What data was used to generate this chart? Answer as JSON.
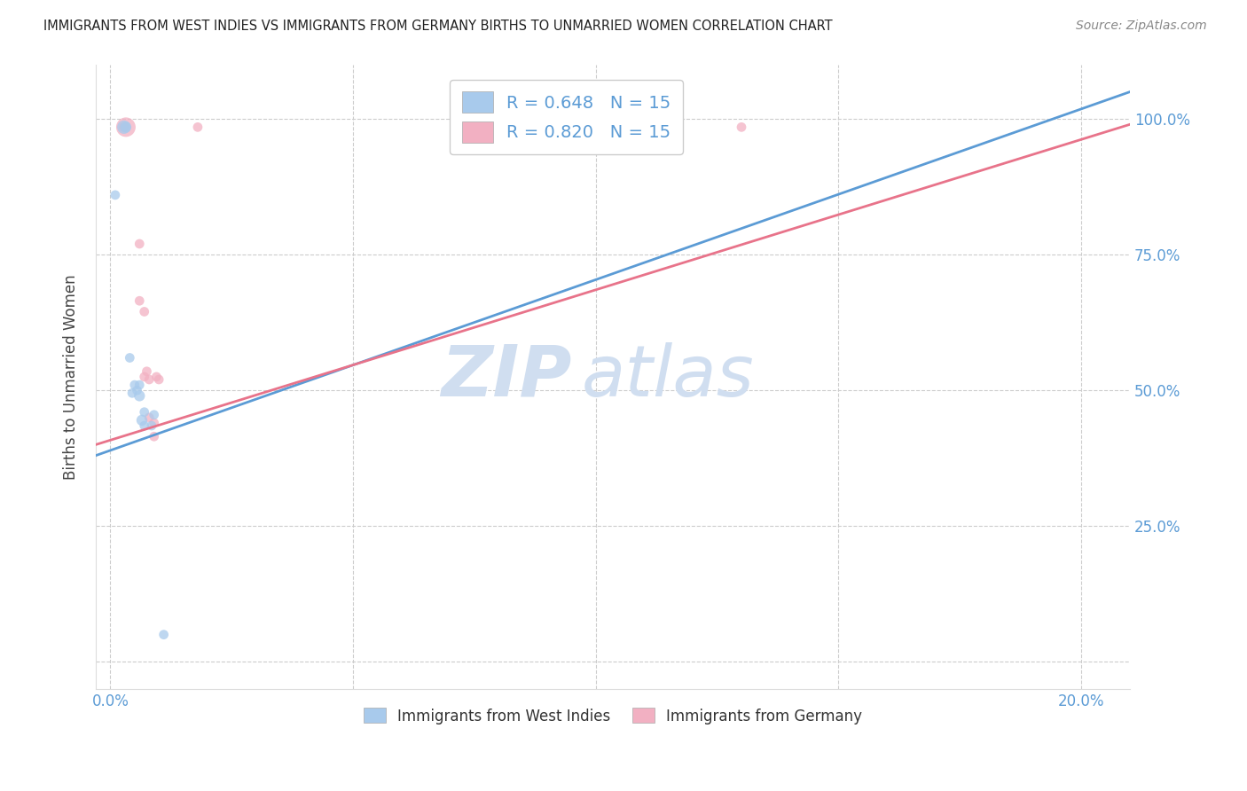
{
  "title": "IMMIGRANTS FROM WEST INDIES VS IMMIGRANTS FROM GERMANY BIRTHS TO UNMARRIED WOMEN CORRELATION CHART",
  "source": "Source: ZipAtlas.com",
  "ylabel_label": "Births to Unmarried Women",
  "xlim": [
    -0.003,
    0.21
  ],
  "ylim": [
    -0.05,
    1.1
  ],
  "R_blue": 0.648,
  "N_blue": 15,
  "R_pink": 0.82,
  "N_pink": 15,
  "blue_color": "#A8CAEC",
  "pink_color": "#F2B0C2",
  "blue_line_color": "#5B9BD5",
  "pink_line_color": "#E8738A",
  "watermark_zip": "ZIP",
  "watermark_atlas": "atlas",
  "watermark_color": "#D0DEF0",
  "legend_label_blue": "Immigrants from West Indies",
  "legend_label_pink": "Immigrants from Germany",
  "blue_scatter": [
    [
      0.001,
      0.86
    ],
    [
      0.0028,
      0.985
    ],
    [
      0.0032,
      0.985
    ],
    [
      0.004,
      0.56
    ],
    [
      0.0045,
      0.495
    ],
    [
      0.005,
      0.51
    ],
    [
      0.0055,
      0.5
    ],
    [
      0.006,
      0.49
    ],
    [
      0.006,
      0.51
    ],
    [
      0.007,
      0.435
    ],
    [
      0.0065,
      0.445
    ],
    [
      0.007,
      0.46
    ],
    [
      0.0085,
      0.435
    ],
    [
      0.009,
      0.455
    ],
    [
      0.011,
      0.05
    ]
  ],
  "blue_sizes": [
    60,
    120,
    80,
    60,
    60,
    60,
    60,
    80,
    60,
    60,
    80,
    60,
    60,
    60,
    60
  ],
  "pink_scatter": [
    [
      0.0028,
      0.985
    ],
    [
      0.0032,
      0.985
    ],
    [
      0.006,
      0.77
    ],
    [
      0.006,
      0.665
    ],
    [
      0.007,
      0.645
    ],
    [
      0.007,
      0.525
    ],
    [
      0.0075,
      0.535
    ],
    [
      0.008,
      0.52
    ],
    [
      0.008,
      0.45
    ],
    [
      0.009,
      0.415
    ],
    [
      0.009,
      0.44
    ],
    [
      0.0095,
      0.525
    ],
    [
      0.01,
      0.52
    ],
    [
      0.018,
      0.985
    ],
    [
      0.13,
      0.985
    ]
  ],
  "pink_sizes": [
    60,
    250,
    60,
    60,
    60,
    60,
    60,
    60,
    60,
    60,
    60,
    60,
    60,
    60,
    60
  ],
  "blue_line_x0": -0.003,
  "blue_line_x1": 0.21,
  "blue_line_y0": 0.38,
  "blue_line_y1": 1.05,
  "pink_line_x0": -0.003,
  "pink_line_x1": 0.21,
  "pink_line_y0": 0.4,
  "pink_line_y1": 0.99,
  "x_tick_positions": [
    0.0,
    0.05,
    0.1,
    0.15,
    0.2
  ],
  "x_tick_labels": [
    "0.0%",
    "",
    "",
    "",
    "20.0%"
  ],
  "y_tick_positions": [
    0.0,
    0.25,
    0.5,
    0.75,
    1.0
  ],
  "y_tick_labels": [
    "",
    "25.0%",
    "50.0%",
    "75.0%",
    "100.0%"
  ]
}
